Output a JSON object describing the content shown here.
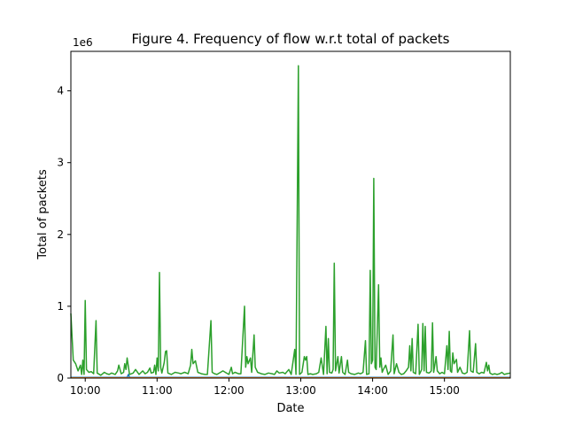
{
  "chart_data": {
    "type": "line",
    "title": "Figure 4. Frequency of flow w.r.t total of packets",
    "xlabel": "Date",
    "ylabel": "Total of packets",
    "y_multiplier_label": "1e6",
    "xlim": [
      "09:48",
      "15:55"
    ],
    "ylim": [
      0,
      4.55
    ],
    "xtick_labels": [
      "10:00",
      "11:00",
      "12:00",
      "13:00",
      "14:00",
      "15:00"
    ],
    "ytick_labels": [
      "0",
      "1",
      "2",
      "3",
      "4"
    ],
    "ytick_values": [
      0,
      1,
      2,
      3,
      4
    ],
    "grid": false,
    "series": [
      {
        "color": "#2ca02c",
        "points": [
          [
            "09:48",
            0.9
          ],
          [
            "09:50",
            0.25
          ],
          [
            "09:52",
            0.2
          ],
          [
            "09:54",
            0.1
          ],
          [
            "09:56",
            0.18
          ],
          [
            "09:57",
            0.05
          ],
          [
            "09:58",
            0.25
          ],
          [
            "09:59",
            0.05
          ],
          [
            "10:00",
            1.08
          ],
          [
            "10:01",
            0.12
          ],
          [
            "10:03",
            0.08
          ],
          [
            "10:05",
            0.09
          ],
          [
            "10:07",
            0.06
          ],
          [
            "10:09",
            0.8
          ],
          [
            "10:10",
            0.07
          ],
          [
            "10:13",
            0.04
          ],
          [
            "10:16",
            0.08
          ],
          [
            "10:18",
            0.06
          ],
          [
            "10:20",
            0.05
          ],
          [
            "10:22",
            0.07
          ],
          [
            "10:25",
            0.05
          ],
          [
            "10:27",
            0.1
          ],
          [
            "10:28",
            0.18
          ],
          [
            "10:30",
            0.06
          ],
          [
            "10:32",
            0.08
          ],
          [
            "10:33",
            0.2
          ],
          [
            "10:34",
            0.12
          ],
          [
            "10:35",
            0.28
          ],
          [
            "10:37",
            0.05
          ],
          [
            "10:40",
            0.07
          ],
          [
            "10:42",
            0.12
          ],
          [
            "10:45",
            0.05
          ],
          [
            "10:48",
            0.1
          ],
          [
            "10:50",
            0.06
          ],
          [
            "10:52",
            0.08
          ],
          [
            "10:54",
            0.14
          ],
          [
            "10:55",
            0.07
          ],
          [
            "10:57",
            0.08
          ],
          [
            "10:58",
            0.18
          ],
          [
            "10:59",
            0.05
          ],
          [
            "11:00",
            0.28
          ],
          [
            "11:01",
            0.1
          ],
          [
            "11:02",
            1.47
          ],
          [
            "11:03",
            0.15
          ],
          [
            "11:04",
            0.07
          ],
          [
            "11:06",
            0.22
          ],
          [
            "11:07",
            0.37
          ],
          [
            "11:08",
            0.38
          ],
          [
            "11:09",
            0.07
          ],
          [
            "11:12",
            0.05
          ],
          [
            "11:15",
            0.08
          ],
          [
            "11:18",
            0.07
          ],
          [
            "11:20",
            0.06
          ],
          [
            "11:23",
            0.08
          ],
          [
            "11:26",
            0.06
          ],
          [
            "11:28",
            0.18
          ],
          [
            "11:29",
            0.4
          ],
          [
            "11:30",
            0.2
          ],
          [
            "11:32",
            0.24
          ],
          [
            "11:34",
            0.08
          ],
          [
            "11:37",
            0.06
          ],
          [
            "11:40",
            0.05
          ],
          [
            "11:42",
            0.05
          ],
          [
            "11:45",
            0.8
          ],
          [
            "11:46",
            0.08
          ],
          [
            "11:48",
            0.06
          ],
          [
            "11:50",
            0.05
          ],
          [
            "11:53",
            0.08
          ],
          [
            "11:55",
            0.1
          ],
          [
            "11:57",
            0.08
          ],
          [
            "12:00",
            0.05
          ],
          [
            "12:02",
            0.15
          ],
          [
            "12:03",
            0.06
          ],
          [
            "12:05",
            0.08
          ],
          [
            "12:08",
            0.06
          ],
          [
            "12:10",
            0.06
          ],
          [
            "12:13",
            1.0
          ],
          [
            "12:14",
            0.15
          ],
          [
            "12:15",
            0.3
          ],
          [
            "12:16",
            0.2
          ],
          [
            "12:18",
            0.28
          ],
          [
            "12:19",
            0.08
          ],
          [
            "12:21",
            0.6
          ],
          [
            "12:22",
            0.15
          ],
          [
            "12:24",
            0.08
          ],
          [
            "12:27",
            0.06
          ],
          [
            "12:30",
            0.05
          ],
          [
            "12:33",
            0.07
          ],
          [
            "12:36",
            0.06
          ],
          [
            "12:38",
            0.05
          ],
          [
            "12:40",
            0.1
          ],
          [
            "12:42",
            0.07
          ],
          [
            "12:45",
            0.08
          ],
          [
            "12:47",
            0.06
          ],
          [
            "12:50",
            0.12
          ],
          [
            "12:52",
            0.05
          ],
          [
            "12:55",
            0.4
          ],
          [
            "12:56",
            0.05
          ],
          [
            "12:58",
            4.35
          ],
          [
            "12:59",
            0.05
          ],
          [
            "13:01",
            0.08
          ],
          [
            "13:03",
            0.3
          ],
          [
            "13:04",
            0.25
          ],
          [
            "13:05",
            0.3
          ],
          [
            "13:06",
            0.05
          ],
          [
            "13:08",
            0.06
          ],
          [
            "13:10",
            0.05
          ],
          [
            "13:13",
            0.06
          ],
          [
            "13:15",
            0.08
          ],
          [
            "13:17",
            0.28
          ],
          [
            "13:19",
            0.05
          ],
          [
            "13:21",
            0.72
          ],
          [
            "13:22",
            0.06
          ],
          [
            "13:23",
            0.55
          ],
          [
            "13:24",
            0.08
          ],
          [
            "13:26",
            0.07
          ],
          [
            "13:27",
            0.12
          ],
          [
            "13:28",
            1.6
          ],
          [
            "13:29",
            0.1
          ],
          [
            "13:31",
            0.3
          ],
          [
            "13:32",
            0.07
          ],
          [
            "13:34",
            0.3
          ],
          [
            "13:35",
            0.08
          ],
          [
            "13:37",
            0.05
          ],
          [
            "13:39",
            0.25
          ],
          [
            "13:40",
            0.08
          ],
          [
            "13:42",
            0.06
          ],
          [
            "13:45",
            0.05
          ],
          [
            "13:48",
            0.07
          ],
          [
            "13:50",
            0.06
          ],
          [
            "13:52",
            0.08
          ],
          [
            "13:54",
            0.52
          ],
          [
            "13:55",
            0.05
          ],
          [
            "13:57",
            0.06
          ],
          [
            "13:58",
            1.5
          ],
          [
            "13:59",
            0.2
          ],
          [
            "14:00",
            0.25
          ],
          [
            "14:01",
            2.78
          ],
          [
            "14:02",
            0.15
          ],
          [
            "14:03",
            0.12
          ],
          [
            "14:05",
            1.3
          ],
          [
            "14:06",
            0.15
          ],
          [
            "14:07",
            0.28
          ],
          [
            "14:08",
            0.08
          ],
          [
            "14:09",
            0.12
          ],
          [
            "14:11",
            0.18
          ],
          [
            "14:13",
            0.05
          ],
          [
            "14:15",
            0.1
          ],
          [
            "14:17",
            0.6
          ],
          [
            "14:18",
            0.06
          ],
          [
            "14:20",
            0.2
          ],
          [
            "14:22",
            0.08
          ],
          [
            "14:24",
            0.05
          ],
          [
            "14:26",
            0.06
          ],
          [
            "14:28",
            0.1
          ],
          [
            "14:30",
            0.15
          ],
          [
            "14:31",
            0.45
          ],
          [
            "14:32",
            0.1
          ],
          [
            "14:33",
            0.55
          ],
          [
            "14:34",
            0.08
          ],
          [
            "14:36",
            0.06
          ],
          [
            "14:38",
            0.75
          ],
          [
            "14:39",
            0.05
          ],
          [
            "14:41",
            0.12
          ],
          [
            "14:42",
            0.76
          ],
          [
            "14:43",
            0.1
          ],
          [
            "14:44",
            0.72
          ],
          [
            "14:45",
            0.08
          ],
          [
            "14:47",
            0.07
          ],
          [
            "14:48",
            0.08
          ],
          [
            "14:49",
            0.1
          ],
          [
            "14:50",
            0.77
          ],
          [
            "14:51",
            0.08
          ],
          [
            "14:53",
            0.3
          ],
          [
            "14:54",
            0.1
          ],
          [
            "14:56",
            0.06
          ],
          [
            "14:58",
            0.08
          ],
          [
            "15:00",
            0.06
          ],
          [
            "15:02",
            0.45
          ],
          [
            "15:03",
            0.12
          ],
          [
            "15:04",
            0.65
          ],
          [
            "15:05",
            0.1
          ],
          [
            "15:06",
            0.08
          ],
          [
            "15:07",
            0.35
          ],
          [
            "15:08",
            0.2
          ],
          [
            "15:10",
            0.26
          ],
          [
            "15:11",
            0.08
          ],
          [
            "15:13",
            0.15
          ],
          [
            "15:15",
            0.07
          ],
          [
            "15:17",
            0.06
          ],
          [
            "15:19",
            0.08
          ],
          [
            "15:21",
            0.66
          ],
          [
            "15:22",
            0.1
          ],
          [
            "15:24",
            0.08
          ],
          [
            "15:26",
            0.48
          ],
          [
            "15:27",
            0.08
          ],
          [
            "15:29",
            0.06
          ],
          [
            "15:31",
            0.08
          ],
          [
            "15:33",
            0.07
          ],
          [
            "15:35",
            0.22
          ],
          [
            "15:36",
            0.1
          ],
          [
            "15:37",
            0.18
          ],
          [
            "15:38",
            0.07
          ],
          [
            "15:40",
            0.05
          ],
          [
            "15:42",
            0.06
          ],
          [
            "15:44",
            0.05
          ],
          [
            "15:46",
            0.06
          ],
          [
            "15:48",
            0.08
          ],
          [
            "15:50",
            0.05
          ],
          [
            "15:52",
            0.06
          ],
          [
            "15:55",
            0.07
          ]
        ]
      },
      {
        "color": "#1f77b4",
        "points": [
          [
            "09:48",
            0.01
          ],
          [
            "10:35",
            0.01
          ],
          [
            "10:36",
            0.05
          ],
          [
            "10:37",
            0.01
          ],
          [
            "12:00",
            0.01
          ],
          [
            "14:00",
            0.01
          ],
          [
            "15:55",
            0.01
          ]
        ]
      },
      {
        "color": "#ff7f0e",
        "points": [
          [
            "09:48",
            0.003
          ],
          [
            "15:55",
            0.003
          ]
        ]
      }
    ]
  }
}
